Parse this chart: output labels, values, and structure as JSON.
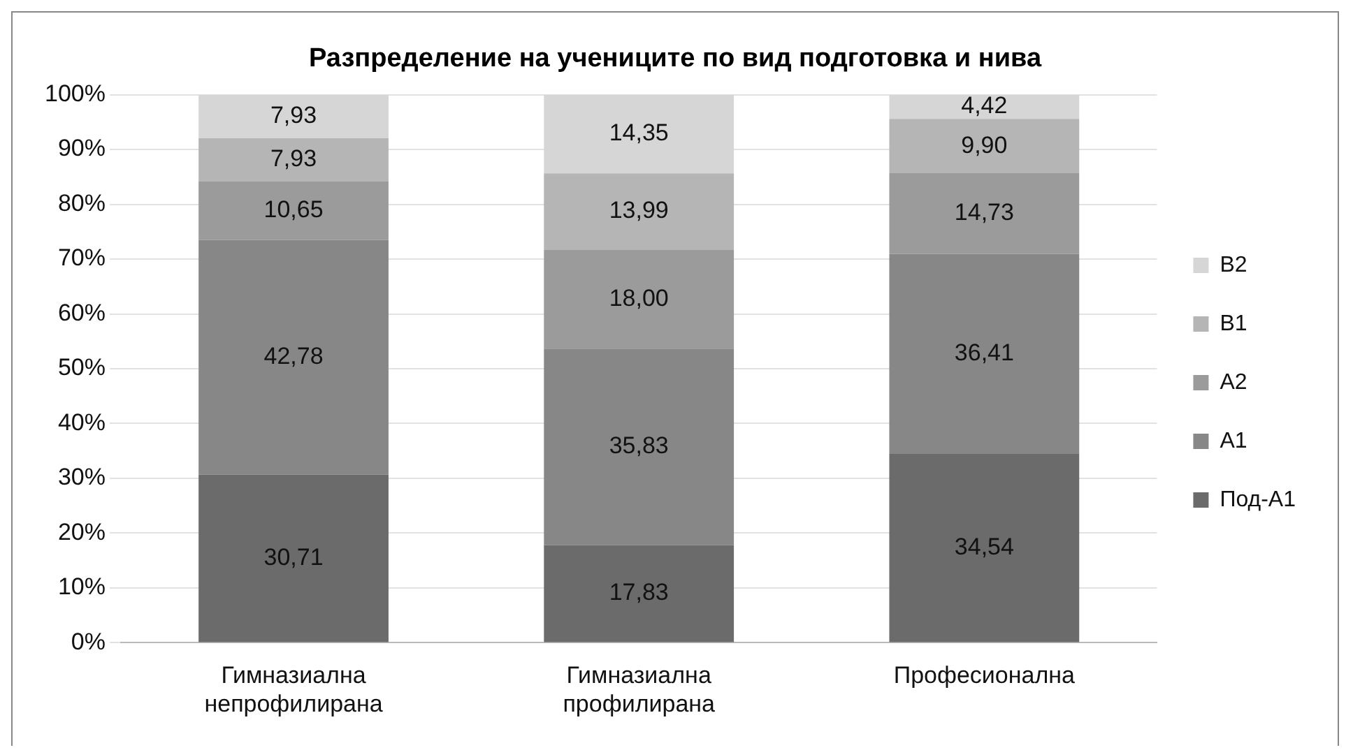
{
  "chart_data": {
    "type": "bar",
    "stacked": true,
    "title": "Разпределение на учениците по вид подготовка и нива",
    "categories": [
      "Гимназиална непрофилирана",
      "Гимназиална профилирана",
      "Професионална"
    ],
    "series": [
      {
        "name": "Под-А1",
        "color": "#6b6b6b",
        "values": [
          30.71,
          17.83,
          34.54
        ],
        "value_labels": [
          "30,71",
          "17,83",
          "34,54"
        ]
      },
      {
        "name": "А1",
        "color": "#878787",
        "values": [
          42.78,
          35.83,
          36.41
        ],
        "value_labels": [
          "42,78",
          "35,83",
          "36,41"
        ]
      },
      {
        "name": "А2",
        "color": "#9b9b9b",
        "values": [
          10.65,
          18.0,
          14.73
        ],
        "value_labels": [
          "10,65",
          "18,00",
          "14,73"
        ]
      },
      {
        "name": "В1",
        "color": "#b5b5b5",
        "values": [
          7.93,
          13.99,
          9.9
        ],
        "value_labels": [
          "7,93",
          "13,99",
          "9,90"
        ]
      },
      {
        "name": "В2",
        "color": "#d6d6d6",
        "values": [
          7.93,
          14.35,
          4.42
        ],
        "value_labels": [
          "7,93",
          "14,35",
          "4,42"
        ]
      }
    ],
    "ylim": [
      0,
      100
    ],
    "yticks": [
      {
        "value": 0,
        "label": "0%"
      },
      {
        "value": 10,
        "label": "10%"
      },
      {
        "value": 20,
        "label": "20%"
      },
      {
        "value": 30,
        "label": "30%"
      },
      {
        "value": 40,
        "label": "40%"
      },
      {
        "value": 50,
        "label": "50%"
      },
      {
        "value": 60,
        "label": "60%"
      },
      {
        "value": 70,
        "label": "70%"
      },
      {
        "value": 80,
        "label": "80%"
      },
      {
        "value": 90,
        "label": "90%"
      },
      {
        "value": 100,
        "label": "100%"
      }
    ],
    "grid": "y",
    "legend": "right"
  }
}
